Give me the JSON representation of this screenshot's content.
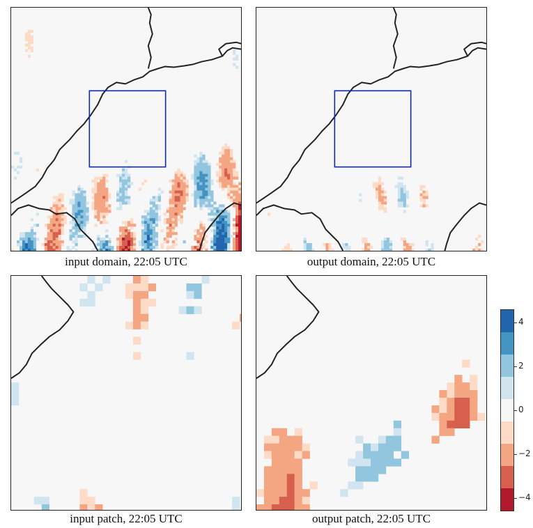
{
  "panels": [
    {
      "id": "input-domain",
      "caption": "input domain, 22:05 UTC"
    },
    {
      "id": "output-domain",
      "caption": "output domain, 22:05 UTC"
    },
    {
      "id": "input-patch",
      "caption": "input patch, 22:05 UTC"
    },
    {
      "id": "output-patch",
      "caption": "output patch, 22:05 UTC"
    }
  ],
  "chart_data": {
    "type": "heatmap",
    "colormap": "RdBu (diverging, red negative, blue positive)",
    "colorbar": {
      "ticks": [
        4,
        2,
        0,
        -2,
        -4
      ],
      "tick_labels": [
        "4",
        "2",
        "0",
        "−2",
        "−4"
      ],
      "range": [
        -4.6,
        4.6
      ],
      "colors": [
        "#b2182b",
        "#d6604d",
        "#f4a582",
        "#fddbc7",
        "#f7f7f7",
        "#d1e5f0",
        "#92c5de",
        "#4393c3",
        "#2166ac"
      ]
    },
    "highlight_box_color": "#0a28c8",
    "border_color": "#222222"
  }
}
